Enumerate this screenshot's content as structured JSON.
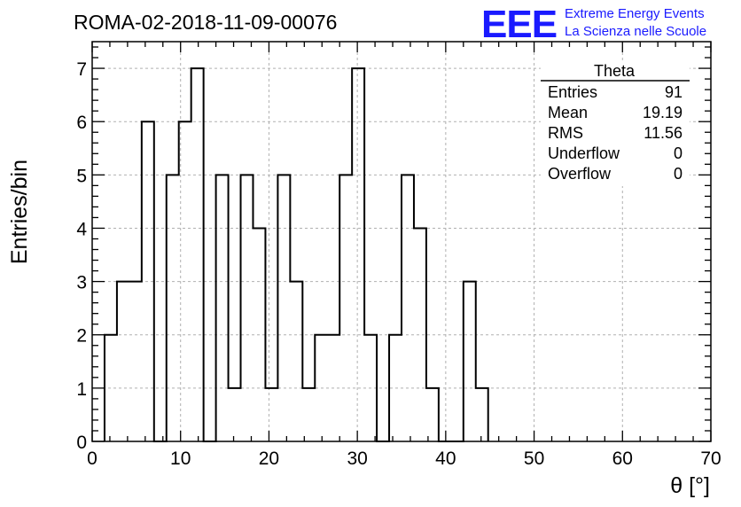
{
  "title": "ROMA-02-2018-11-09-00076",
  "logo": {
    "mark": "EEE",
    "line1": "Extreme Energy Events",
    "line2": "La Scienza nelle Scuole",
    "color": "#1a1aff"
  },
  "stats": {
    "name": "Theta",
    "rows": [
      {
        "label": "Entries",
        "value": "91"
      },
      {
        "label": "Mean",
        "value": "19.19"
      },
      {
        "label": "RMS",
        "value": "11.56"
      },
      {
        "label": "Underflow",
        "value": "0"
      },
      {
        "label": "Overflow",
        "value": "0"
      }
    ]
  },
  "chart_data": {
    "type": "bar",
    "style": "step-histogram",
    "xlabel": "θ [°]",
    "ylabel": "Entries/bin",
    "xlim": [
      0,
      70
    ],
    "ylim": [
      0,
      7.5
    ],
    "grid": true,
    "bin_width": 1.4,
    "bin_start": 1.4,
    "values": [
      2,
      3,
      3,
      6,
      0,
      5,
      6,
      7,
      0,
      5,
      1,
      5,
      4,
      1,
      5,
      3,
      1,
      2,
      2,
      5,
      7,
      2,
      0,
      2,
      5,
      4,
      1,
      0,
      0,
      3,
      1
    ],
    "x_ticks": [
      0,
      10,
      20,
      30,
      40,
      50,
      60,
      70
    ],
    "y_ticks": [
      0,
      1,
      2,
      3,
      4,
      5,
      6,
      7
    ]
  }
}
